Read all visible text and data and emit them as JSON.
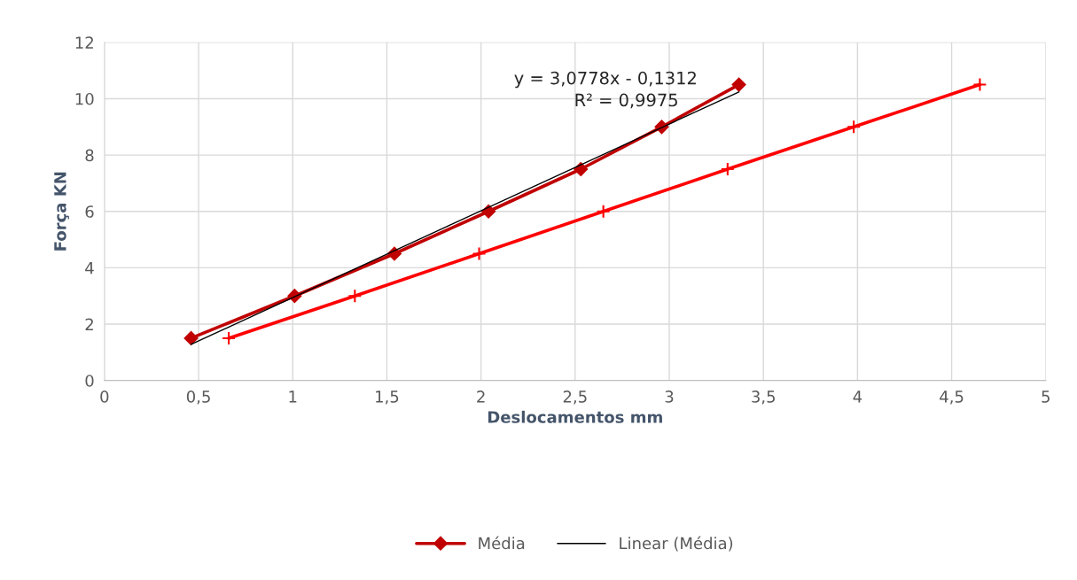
{
  "chart_data": {
    "type": "line",
    "xlabel": "Deslocamentos mm",
    "ylabel": "Força KN",
    "xlim": [
      0,
      5
    ],
    "xticks": [
      0,
      {
        "value": 0.5,
        "label": "0,5"
      },
      1,
      {
        "value": 1.5,
        "label": "1,5"
      },
      2,
      {
        "value": 2.5,
        "label": "2,5"
      },
      3,
      {
        "value": 3.5,
        "label": "3,5"
      },
      4,
      {
        "value": 4.5,
        "label": "4,5"
      },
      5
    ],
    "ylim": [
      0,
      12
    ],
    "yticks": [
      0,
      2,
      4,
      6,
      8,
      10,
      12
    ],
    "grid": true,
    "legend": "bottom",
    "series": [
      {
        "color": "#ff0000",
        "marker": "cross",
        "x": [
          0.66,
          1.33,
          1.99,
          2.65,
          3.31,
          3.98,
          4.65
        ],
        "values": [
          1.5,
          3,
          4.5,
          6,
          7.5,
          9,
          10.5
        ]
      },
      {
        "name": "Média",
        "color": "#c00000",
        "marker": "diamond",
        "x": [
          0.46,
          1.01,
          1.54,
          2.04,
          2.53,
          2.96,
          3.37
        ],
        "values": [
          1.5,
          3,
          4.5,
          6,
          7.5,
          9,
          10.5
        ]
      },
      {
        "name": "Linear (Média)",
        "color": "#000000",
        "marker": "none",
        "x": [
          0.46,
          3.37
        ],
        "values": [
          1.28,
          10.24
        ]
      }
    ],
    "annotations": [
      "y = 3,0778x - 0,1312",
      "R² = 0,9975"
    ]
  }
}
